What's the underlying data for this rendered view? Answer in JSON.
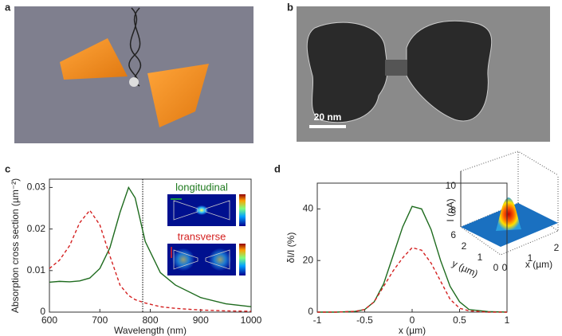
{
  "panel_labels": [
    "a",
    "b",
    "c",
    "d"
  ],
  "scale_bar": "20 nm",
  "inset_c": {
    "top": "longitudinal",
    "bottom": "transverse"
  },
  "surface_inset": {
    "z_label": "I (nA)",
    "z_ticks": [
      6,
      8,
      10
    ],
    "y_label": "y (µm)",
    "y_ticks": [
      0,
      1,
      2
    ],
    "x_label": "x (µm)",
    "x_ticks": [
      0,
      1,
      2
    ]
  },
  "chart_data": [
    {
      "type": "line",
      "xlabel": "Wavelength (nm)",
      "ylabel": "Absorption cross section (µm⁻²)",
      "xlim": [
        600,
        1000
      ],
      "xticks": [
        600,
        700,
        800,
        900,
        1000
      ],
      "ylim": [
        0,
        0.032
      ],
      "yticks": [
        0,
        0.01,
        0.02,
        0.03
      ],
      "x": [
        600,
        620,
        640,
        660,
        680,
        700,
        720,
        740,
        757,
        770,
        790,
        820,
        850,
        900,
        950,
        1000
      ],
      "series": [
        {
          "color": "#1e6b1e",
          "linestyle": "solid",
          "values": [
            0.0072,
            0.0074,
            0.0073,
            0.0075,
            0.0082,
            0.0105,
            0.0155,
            0.024,
            0.03,
            0.0275,
            0.017,
            0.0095,
            0.0065,
            0.0035,
            0.002,
            0.0013
          ]
        },
        {
          "color": "#d42020",
          "linestyle": "dashed",
          "values": [
            0.0105,
            0.0125,
            0.016,
            0.0215,
            0.0245,
            0.021,
            0.0135,
            0.0065,
            0.004,
            0.003,
            0.0022,
            0.0013,
            0.0009,
            0.0005,
            0.0003,
            0.0002
          ]
        }
      ],
      "vline": 785
    },
    {
      "type": "line",
      "xlabel": "x (µm)",
      "ylabel": "δI/I (%)",
      "xlim": [
        -1,
        1
      ],
      "xticks": [
        -1,
        -0.5,
        0,
        0.5,
        1
      ],
      "ylim": [
        0,
        50
      ],
      "yticks": [
        0,
        20,
        40
      ],
      "x": [
        -1,
        -0.8,
        -0.6,
        -0.5,
        -0.4,
        -0.3,
        -0.2,
        -0.1,
        0,
        0.1,
        0.2,
        0.3,
        0.4,
        0.5,
        0.6,
        0.8,
        1
      ],
      "series": [
        {
          "color": "#1e6b1e",
          "linestyle": "solid",
          "values": [
            0,
            0,
            0.3,
            1,
            4,
            11,
            22,
            33,
            41,
            40,
            32,
            20,
            10,
            4,
            1,
            0.2,
            0
          ]
        },
        {
          "color": "#d42020",
          "linestyle": "dashed",
          "values": [
            0,
            0,
            0.3,
            1,
            4,
            10,
            16,
            21,
            25,
            24,
            19,
            12,
            5,
            1.5,
            0.5,
            0,
            0
          ]
        }
      ]
    }
  ]
}
